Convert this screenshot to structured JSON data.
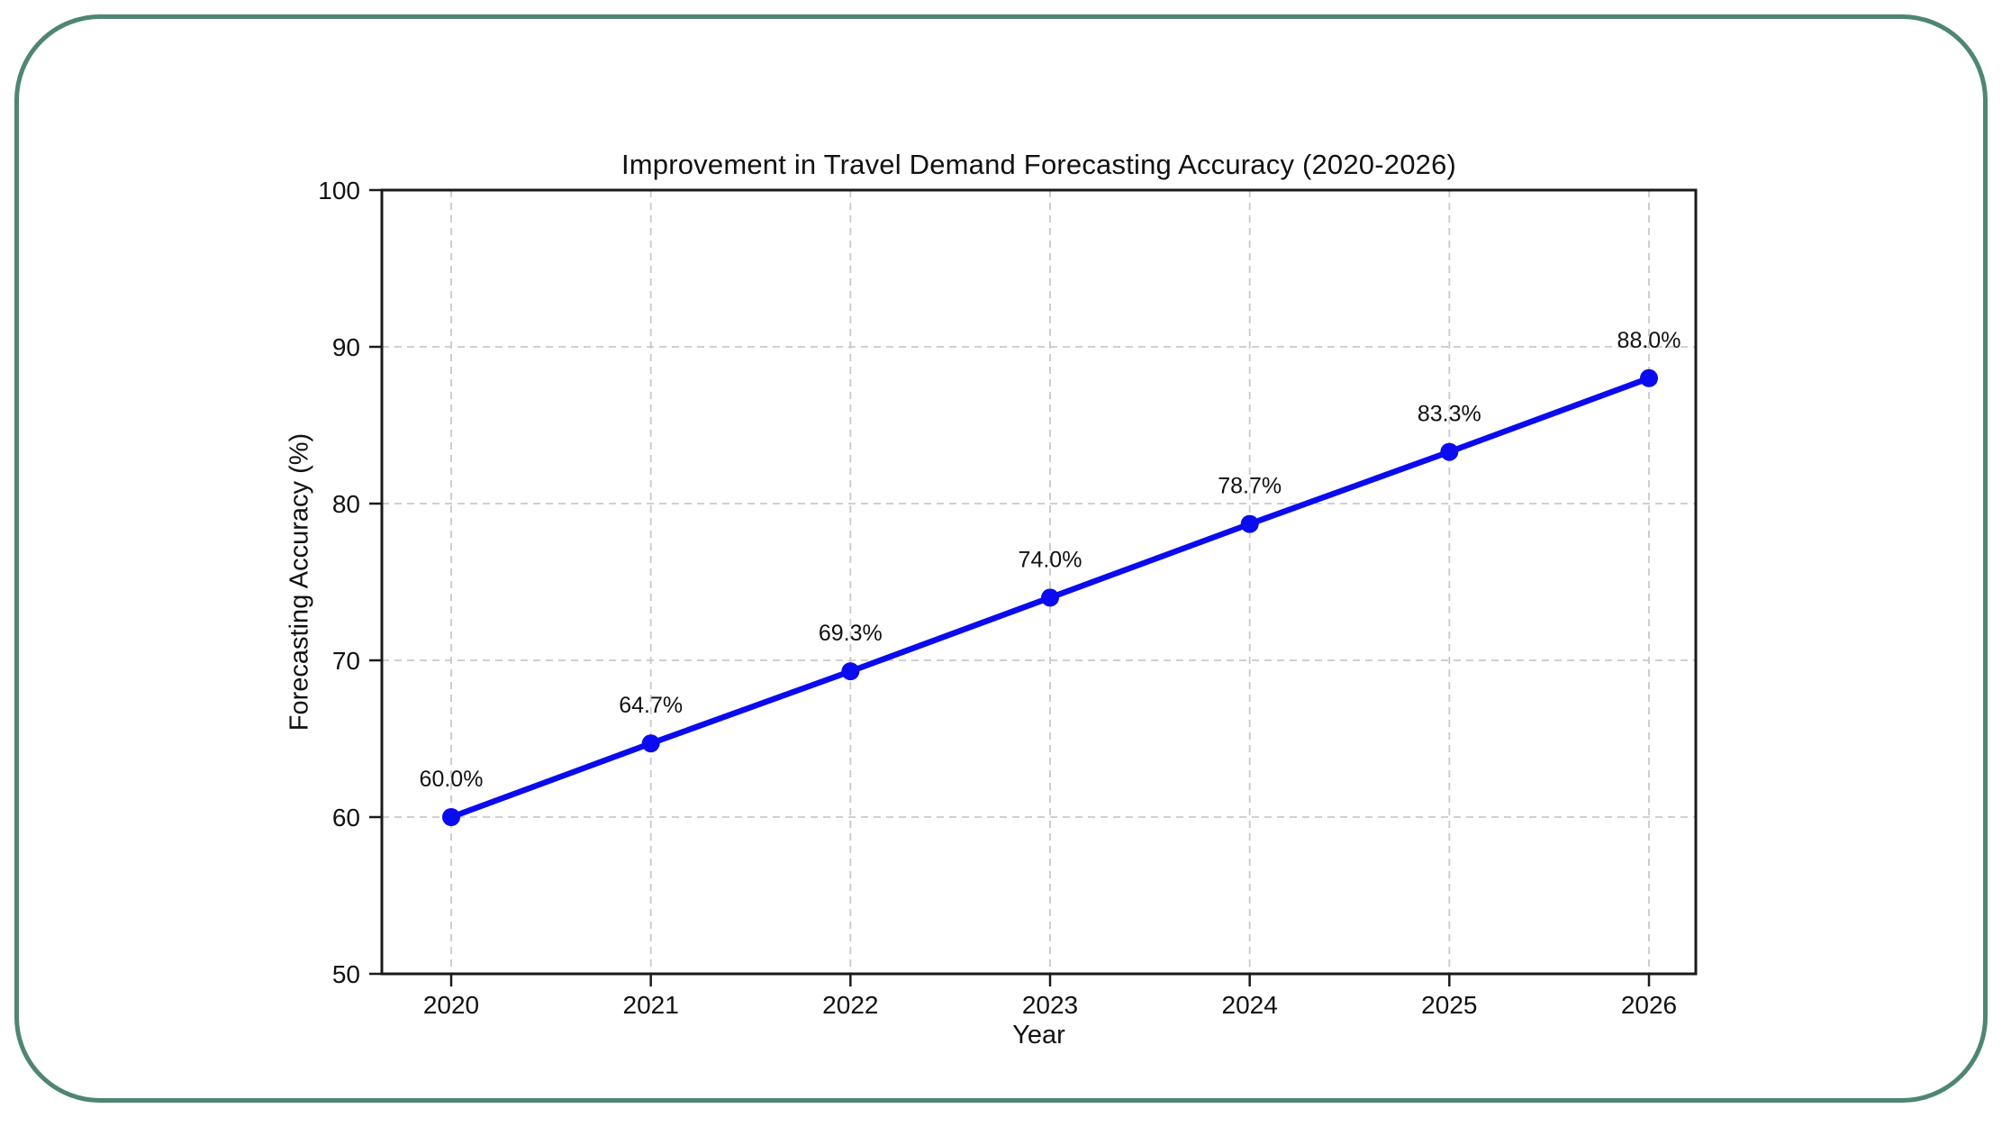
{
  "card": {
    "border_color": "#4e8672",
    "background": "#ffffff"
  },
  "chart_data": {
    "type": "line",
    "title": "Improvement in Travel Demand Forecasting Accuracy (2020-2026)",
    "xlabel": "Year",
    "ylabel": "Forecasting Accuracy (%)",
    "categories": [
      "2020",
      "2021",
      "2022",
      "2023",
      "2024",
      "2025",
      "2026"
    ],
    "series": [
      {
        "name": "Forecasting Accuracy",
        "values": [
          60.0,
          64.7,
          69.3,
          74.0,
          78.7,
          83.3,
          88.0
        ]
      }
    ],
    "point_labels": [
      "60.0%",
      "64.7%",
      "69.3%",
      "74.0%",
      "78.7%",
      "83.3%",
      "88.0%"
    ],
    "ylim": [
      50,
      100
    ],
    "yticks": [
      50,
      60,
      70,
      80,
      90,
      100
    ],
    "ytick_labels": [
      "50",
      "60",
      "70",
      "80",
      "90",
      "100"
    ],
    "grid": true,
    "grid_style": "dashed",
    "legend_position": "none",
    "colors": {
      "line": "#0b0bef",
      "marker": "#0b0bef",
      "grid": "#c9c9c9",
      "axis": "#1a1a1a",
      "text": "#111111"
    }
  }
}
